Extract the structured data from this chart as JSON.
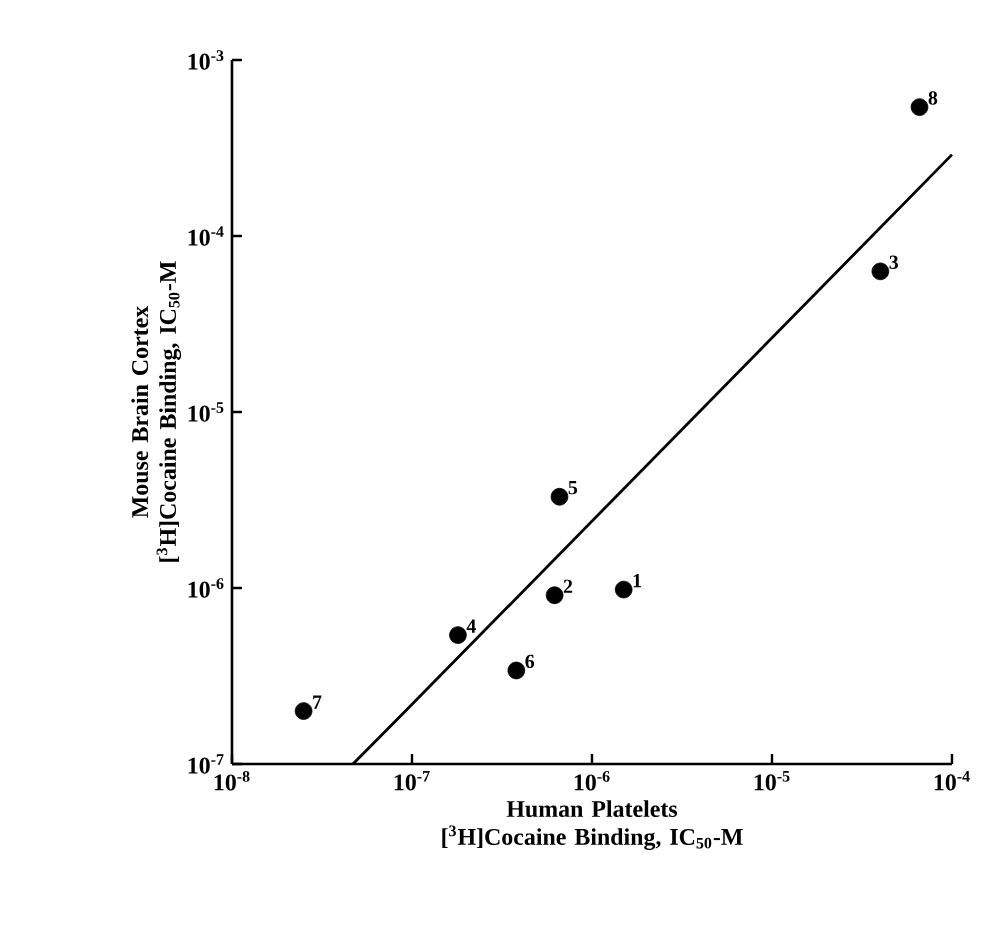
{
  "chart_data": {
    "type": "scatter",
    "log": "xy",
    "xlabel": "Human Platelets [$^{3}$H]Cocaine Binding, IC$_{50}$-M",
    "ylabel": "Mouse Brain Cortex [$^{3}$H]Cocaine Binding, IC$_{50}$-M",
    "xlim": [
      1e-08,
      0.0001
    ],
    "ylim": [
      1e-07,
      0.001
    ],
    "xticks": [
      {
        "value": 1e-08,
        "label": "10$^{-8}$"
      },
      {
        "value": 1e-07,
        "label": "10$^{-7}$"
      },
      {
        "value": 1e-06,
        "label": "10$^{-6}$"
      },
      {
        "value": 1e-05,
        "label": "10$^{-5}$"
      },
      {
        "value": 0.0001,
        "label": "10$^{-4}$"
      }
    ],
    "yticks": [
      {
        "value": 1e-07,
        "label": "10$^{-7}$"
      },
      {
        "value": 1e-06,
        "label": "10$^{-6}$"
      },
      {
        "value": 1e-05,
        "label": "10$^{-5}$"
      },
      {
        "value": 0.0001,
        "label": "10$^{-4}$"
      },
      {
        "value": 0.001,
        "label": "10$^{-3}$"
      }
    ],
    "series": [
      {
        "color": "#000000",
        "marker": "circle",
        "x": [
          1.5e-06,
          6.2e-07,
          4e-05,
          1.8e-07,
          6.6e-07,
          3.8e-07,
          2.5e-08,
          6.6e-05
        ],
        "values": [
          9.8e-07,
          9.1e-07,
          6.3e-05,
          5.4e-07,
          3.3e-06,
          3.4e-07,
          2e-07,
          0.00054
        ]
      },
      {
        "type": "line",
        "color": "#000000",
        "marker": "none",
        "line_style": "solid",
        "x": [
          4.7e-08,
          9.2e-08,
          0.0001
        ],
        "values": [
          1e-07,
          2e-07,
          0.00029
        ]
      }
    ],
    "annotations": [
      {
        "text": "1",
        "x": 1.5e-06,
        "y": 9.8e-07
      },
      {
        "text": "2",
        "x": 6.2e-07,
        "y": 9.1e-07
      },
      {
        "text": "3",
        "x": 4e-05,
        "y": 6.3e-05
      },
      {
        "text": "4",
        "x": 1.8e-07,
        "y": 5.4e-07
      },
      {
        "text": "5",
        "x": 6.6e-07,
        "y": 3.3e-06
      },
      {
        "text": "6",
        "x": 3.8e-07,
        "y": 3.4e-07
      },
      {
        "text": "7",
        "x": 2.5e-08,
        "y": 2e-07
      },
      {
        "text": "8",
        "x": 6.6e-05,
        "y": 0.00054
      }
    ]
  }
}
